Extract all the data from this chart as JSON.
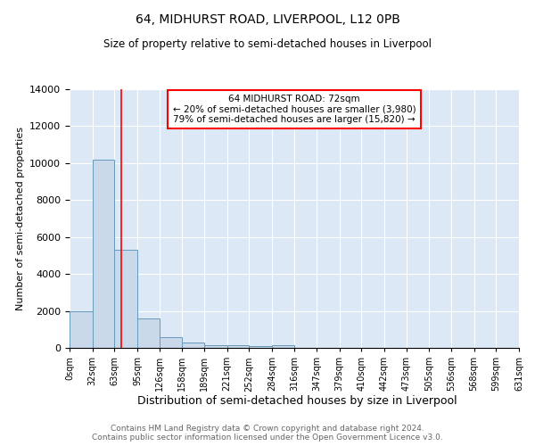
{
  "title": "64, MIDHURST ROAD, LIVERPOOL, L12 0PB",
  "subtitle": "Size of property relative to semi-detached houses in Liverpool",
  "xlabel": "Distribution of semi-detached houses by size in Liverpool",
  "ylabel": "Number of semi-detached properties",
  "bar_color": "#c9d9ea",
  "bar_edge_color": "#6699bb",
  "background_color": "#dce8f5",
  "annotation_line1": "64 MIDHURST ROAD: 72sqm",
  "annotation_line2": "← 20% of semi-detached houses are smaller (3,980)",
  "annotation_line3": "79% of semi-detached houses are larger (15,820) →",
  "property_sqm": 72,
  "bin_edges": [
    0,
    32,
    63,
    95,
    126,
    158,
    189,
    221,
    252,
    284,
    316,
    347,
    379,
    410,
    442,
    473,
    505,
    536,
    568,
    599,
    631
  ],
  "bin_labels": [
    "0sqm",
    "32sqm",
    "63sqm",
    "95sqm",
    "126sqm",
    "158sqm",
    "189sqm",
    "221sqm",
    "252sqm",
    "284sqm",
    "316sqm",
    "347sqm",
    "379sqm",
    "410sqm",
    "442sqm",
    "473sqm",
    "505sqm",
    "536sqm",
    "568sqm",
    "599sqm",
    "631sqm"
  ],
  "bar_heights": [
    2000,
    10200,
    5300,
    1600,
    600,
    270,
    150,
    130,
    110,
    130,
    0,
    0,
    0,
    0,
    0,
    0,
    0,
    0,
    0,
    0
  ],
  "ylim": [
    0,
    14000
  ],
  "yticks": [
    0,
    2000,
    4000,
    6000,
    8000,
    10000,
    12000,
    14000
  ],
  "red_line_x": 72,
  "footnote": "Contains HM Land Registry data © Crown copyright and database right 2024.\nContains public sector information licensed under the Open Government Licence v3.0."
}
